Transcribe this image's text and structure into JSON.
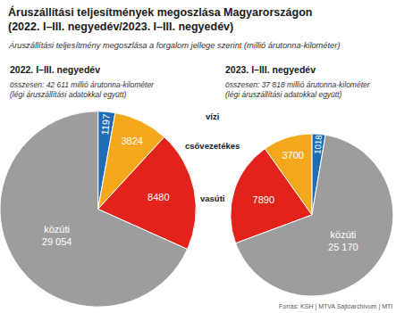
{
  "title": [
    "Áruszállítási teljesítmények megoszlása Magyarországon",
    "(2022. I–III. negyedév/2023. I–III. negyedév)"
  ],
  "subtitle": "Áruszállítási teljesítmény megoszlása a forgalom jellege szerint (millió árutonna-kilométer)",
  "source": "Forrás: KSH | MTVA Sajtóarchívum | MTI",
  "chart_data": [
    {
      "type": "pie",
      "title": "2022. I–III. negyedév",
      "subtitle": [
        "összesen: 42 611 millió árutonna-kilométer",
        "(légi áruszállítási adatokkal együtt)"
      ],
      "categories": [
        "vízi",
        "csővezetékes",
        "vasúti",
        "közúti"
      ],
      "values": [
        1197,
        3824,
        8480,
        29054
      ],
      "value_labels": [
        "1197",
        "3824",
        "8480",
        "29 054"
      ],
      "colors": [
        "#1f6db4",
        "#f6a81c",
        "#e3231b",
        "#9d9d9d"
      ],
      "data_labels": true
    },
    {
      "type": "pie",
      "title": "2023. I–III. negyedév",
      "subtitle": [
        "összesen: 37 818 millió árutonna-kilométer",
        "(légi áruszállítási adatokkal együtt)"
      ],
      "categories": [
        "vízi",
        "csővezetékes",
        "vasúti",
        "közúti"
      ],
      "values": [
        1018,
        3700,
        7890,
        25170
      ],
      "value_labels": [
        "1018",
        "3700",
        "7890",
        "25 170"
      ],
      "colors": [
        "#1f6db4",
        "#f6a81c",
        "#e3231b",
        "#9d9d9d"
      ],
      "data_labels": true
    }
  ]
}
